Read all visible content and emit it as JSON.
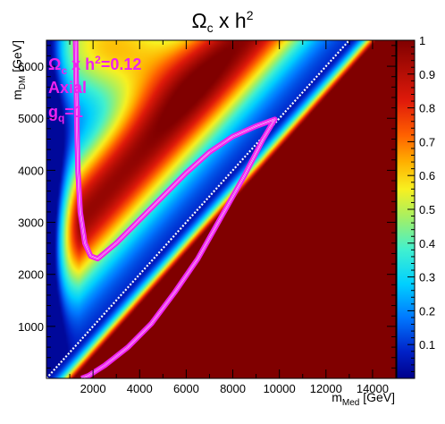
{
  "chart_data": {
    "type": "heatmap",
    "title": {
      "base": "Ω",
      "sub": "c",
      "rest": " x h",
      "sup": "2"
    },
    "xlabel": {
      "main": "m",
      "sub": "Med",
      "unit": " [GeV]"
    },
    "ylabel": {
      "main": "m",
      "sub": "DM",
      "unit": " [GeV]"
    },
    "xlim": [
      0,
      15000
    ],
    "ylim": [
      0,
      6500
    ],
    "x_ticks": [
      "2000",
      "4000",
      "6000",
      "8000",
      "10000",
      "12000",
      "14000"
    ],
    "x_tick_values": [
      2000,
      4000,
      6000,
      8000,
      10000,
      12000,
      14000
    ],
    "y_ticks": [
      "1000",
      "2000",
      "3000",
      "4000",
      "5000",
      "6000"
    ],
    "y_tick_values": [
      1000,
      2000,
      3000,
      4000,
      5000,
      6000
    ],
    "z_range": [
      0,
      1
    ],
    "z_ticks": [
      "0.1",
      "0.2",
      "0.3",
      "0.4",
      "0.5",
      "0.6",
      "0.7",
      "0.8",
      "0.9",
      "1"
    ],
    "z_tick_values": [
      0.1,
      0.2,
      0.3,
      0.4,
      0.5,
      0.6,
      0.7,
      0.8,
      0.9,
      1.0
    ],
    "colormap": "rainbow (dark blue → cyan → yellow → red → dark red)",
    "contour": {
      "label": "Ωc x h² = 0.12",
      "color": "#ee22ee",
      "level": 0.12,
      "upper_branch": [
        [
          1250,
          6500
        ],
        [
          1300,
          5000
        ],
        [
          1350,
          4000
        ],
        [
          1450,
          3200
        ],
        [
          1650,
          2600
        ],
        [
          1900,
          2350
        ],
        [
          2200,
          2300
        ],
        [
          3000,
          2600
        ],
        [
          4000,
          3050
        ],
        [
          5000,
          3500
        ],
        [
          6000,
          3950
        ],
        [
          7000,
          4350
        ],
        [
          8000,
          4650
        ],
        [
          9000,
          4850
        ],
        [
          9800,
          4980
        ]
      ],
      "lower_branch": [
        [
          9800,
          4980
        ],
        [
          9300,
          4600
        ],
        [
          8500,
          3900
        ],
        [
          7500,
          3100
        ],
        [
          6500,
          2300
        ],
        [
          5500,
          1650
        ],
        [
          4500,
          1050
        ],
        [
          3500,
          600
        ],
        [
          2500,
          250
        ],
        [
          1800,
          50
        ],
        [
          1500,
          0
        ]
      ]
    },
    "diagonal": {
      "label": "m_DM = m_Med / 2",
      "style": "dotted white",
      "x": [
        0,
        15000
      ],
      "y": [
        0,
        7500
      ]
    },
    "annotations": [
      {
        "text": "Ω",
        "sub": "c",
        "rest": " x h",
        "sup": "2",
        "tail": "=0.12"
      },
      {
        "text": "Axial"
      },
      {
        "text": "g",
        "sub": "q",
        "tail": "=1"
      }
    ]
  }
}
